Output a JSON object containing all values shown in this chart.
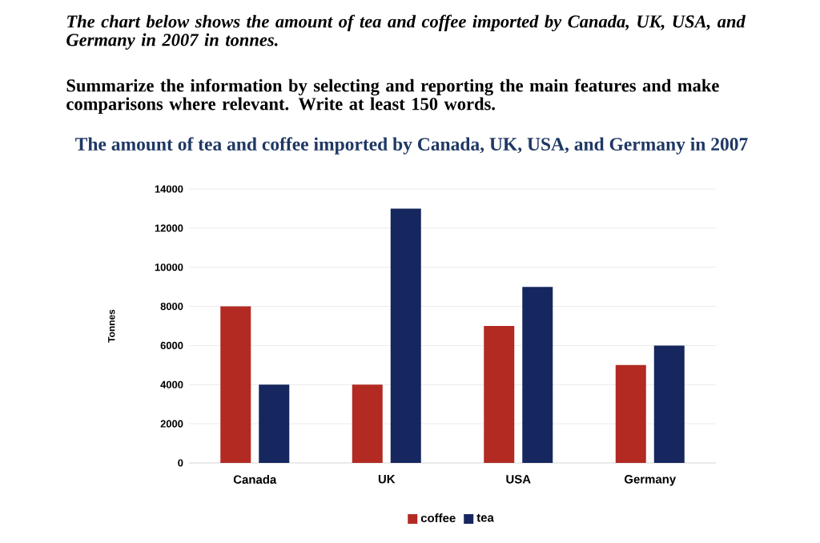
{
  "chart_data": {
    "type": "bar",
    "title": "The amount of tea and coffee imported by Canada, UK, USA, and Germany in 2007",
    "annotations": [
      "The chart below shows the amount of tea and coffee imported by Canada, UK, USA, and Germany in 2007 in tonnes.",
      "Summarize the information by selecting and reporting the main features and make comparisons where relevant. Write at least 150 words."
    ],
    "ylabel": "Tonnes",
    "categories": [
      "Canada",
      "UK",
      "USA",
      "Germany"
    ],
    "series": [
      {
        "name": "coffee",
        "color": "#b22a22",
        "values": [
          8000,
          4000,
          7000,
          5000
        ]
      },
      {
        "name": "tea",
        "color": "#16265e",
        "values": [
          4000,
          13000,
          9000,
          6000
        ]
      }
    ],
    "ylim": [
      0,
      14000
    ],
    "yticks": [
      0,
      2000,
      4000,
      6000,
      8000,
      10000,
      12000,
      14000
    ],
    "grid": "y",
    "legend": "bottom"
  }
}
